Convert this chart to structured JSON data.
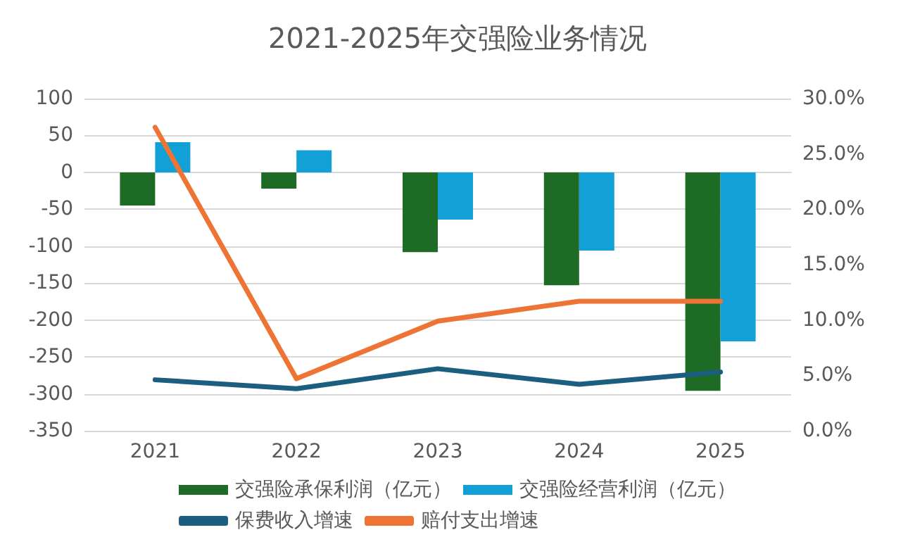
{
  "chart_data": {
    "type": "bar",
    "title": "2021-2025年交强险业务情况",
    "categories": [
      "2021",
      "2022",
      "2023",
      "2024",
      "2025"
    ],
    "series": [
      {
        "name": "交强险承保利润（亿元）",
        "color": "#1e6b25",
        "values": [
          -45,
          -22,
          -108,
          -153,
          -296
        ]
      },
      {
        "name": "交强险经营利润（亿元）",
        "color": "#12a0d7",
        "values": [
          41,
          30,
          -64,
          -106,
          -229
        ]
      },
      {
        "name": "保费收入增速",
        "type": "line",
        "axis": "y2",
        "color": "#1b5e80",
        "values": [
          4.6,
          3.8,
          5.6,
          4.2,
          5.3
        ]
      },
      {
        "name": "赔付支出增速",
        "type": "line",
        "axis": "y2",
        "color": "#ed7434",
        "values": [
          27.4,
          4.7,
          9.9,
          11.7,
          11.7
        ]
      }
    ],
    "ylim": [
      -350,
      100
    ],
    "yticks": [
      -350,
      -300,
      -250,
      -200,
      -150,
      -100,
      -50,
      0,
      50,
      100
    ],
    "y2lim": [
      0,
      30
    ],
    "y2ticks": [
      {
        "value": 0,
        "label": "0.0%"
      },
      {
        "value": 5,
        "label": "5.0%"
      },
      {
        "value": 10,
        "label": "10.0%"
      },
      {
        "value": 15,
        "label": "15.0%"
      },
      {
        "value": 20,
        "label": "20.0%"
      },
      {
        "value": 25,
        "label": "25.0%"
      },
      {
        "value": 30,
        "label": "30.0%"
      }
    ],
    "grid": "y",
    "legend": "bottom",
    "marker": "none",
    "line_style": "solid"
  }
}
